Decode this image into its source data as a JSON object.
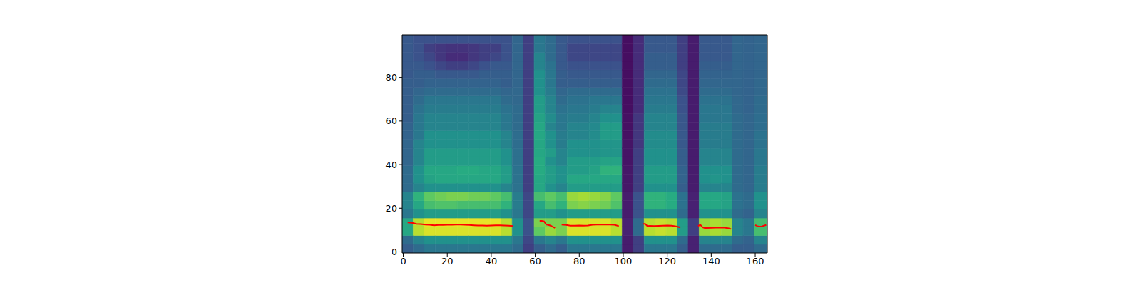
{
  "chart_data": {
    "type": "spectrogram",
    "xlim": [
      -0.5,
      165.5
    ],
    "ylim": [
      -0.5,
      99.5
    ],
    "xticks": [
      0,
      20,
      40,
      60,
      80,
      100,
      120,
      140,
      160
    ],
    "yticks": [
      0,
      20,
      40,
      60,
      80
    ],
    "zlim": [
      0,
      1
    ],
    "cell_x_edges": [
      -0.5,
      4.5,
      9.5,
      14.5,
      19.5,
      24.5,
      29.5,
      34.5,
      39.5,
      44.5,
      49.5,
      54.5,
      59.5,
      64.5,
      69.5,
      74.5,
      79.5,
      84.5,
      89.5,
      94.5,
      99.5,
      104.5,
      109.5,
      114.5,
      119.5,
      124.5,
      129.5,
      134.5,
      139.5,
      144.5,
      149.5,
      154.5,
      159.5,
      165.5
    ],
    "cell_y_edges": [
      -0.5,
      3.5,
      7.5,
      11.5,
      15.5,
      19.5,
      23.5,
      27.5,
      31.5,
      35.5,
      39.5,
      43.5,
      47.5,
      51.5,
      55.5,
      59.5,
      63.5,
      67.5,
      71.5,
      75.5,
      79.5,
      83.5,
      87.5,
      91.5,
      95.5,
      99.5
    ],
    "cells": [
      [
        0.3,
        0.35,
        0.6,
        0.6,
        0.4,
        0.45,
        0.45,
        0.35,
        0.35,
        0.35,
        0.33,
        0.33,
        0.33,
        0.32,
        0.32,
        0.3,
        0.3,
        0.3,
        0.3,
        0.3,
        0.28,
        0.28,
        0.28,
        0.28,
        0.28
      ],
      [
        0.35,
        0.45,
        0.9,
        0.9,
        0.5,
        0.6,
        0.65,
        0.45,
        0.5,
        0.5,
        0.45,
        0.45,
        0.45,
        0.4,
        0.4,
        0.4,
        0.38,
        0.35,
        0.33,
        0.3,
        0.3,
        0.28,
        0.25,
        0.25,
        0.25
      ],
      [
        0.4,
        0.5,
        0.95,
        0.97,
        0.55,
        0.7,
        0.75,
        0.5,
        0.58,
        0.6,
        0.55,
        0.55,
        0.5,
        0.5,
        0.45,
        0.45,
        0.42,
        0.4,
        0.35,
        0.32,
        0.3,
        0.25,
        0.22,
        0.2,
        0.25
      ],
      [
        0.4,
        0.5,
        0.95,
        0.97,
        0.55,
        0.72,
        0.78,
        0.5,
        0.6,
        0.6,
        0.55,
        0.55,
        0.5,
        0.5,
        0.45,
        0.45,
        0.42,
        0.4,
        0.35,
        0.32,
        0.28,
        0.22,
        0.18,
        0.18,
        0.25
      ],
      [
        0.4,
        0.5,
        0.95,
        0.97,
        0.55,
        0.72,
        0.8,
        0.5,
        0.6,
        0.6,
        0.55,
        0.55,
        0.5,
        0.5,
        0.45,
        0.45,
        0.42,
        0.4,
        0.35,
        0.32,
        0.28,
        0.2,
        0.15,
        0.17,
        0.25
      ],
      [
        0.4,
        0.5,
        0.95,
        0.97,
        0.55,
        0.7,
        0.8,
        0.5,
        0.6,
        0.62,
        0.55,
        0.55,
        0.5,
        0.5,
        0.45,
        0.45,
        0.42,
        0.4,
        0.35,
        0.32,
        0.28,
        0.2,
        0.15,
        0.17,
        0.25
      ],
      [
        0.4,
        0.5,
        0.95,
        0.97,
        0.55,
        0.7,
        0.78,
        0.5,
        0.6,
        0.62,
        0.55,
        0.55,
        0.5,
        0.5,
        0.45,
        0.45,
        0.42,
        0.4,
        0.35,
        0.32,
        0.28,
        0.22,
        0.18,
        0.18,
        0.25
      ],
      [
        0.4,
        0.5,
        0.95,
        0.97,
        0.55,
        0.7,
        0.78,
        0.5,
        0.6,
        0.6,
        0.55,
        0.55,
        0.5,
        0.5,
        0.45,
        0.45,
        0.42,
        0.4,
        0.35,
        0.32,
        0.3,
        0.25,
        0.2,
        0.2,
        0.25
      ],
      [
        0.4,
        0.5,
        0.95,
        0.97,
        0.55,
        0.7,
        0.75,
        0.5,
        0.6,
        0.6,
        0.55,
        0.55,
        0.5,
        0.5,
        0.45,
        0.45,
        0.42,
        0.4,
        0.35,
        0.32,
        0.3,
        0.28,
        0.22,
        0.2,
        0.25
      ],
      [
        0.4,
        0.5,
        0.9,
        0.9,
        0.5,
        0.65,
        0.7,
        0.45,
        0.55,
        0.55,
        0.5,
        0.5,
        0.45,
        0.45,
        0.4,
        0.4,
        0.38,
        0.35,
        0.33,
        0.3,
        0.3,
        0.28,
        0.25,
        0.25,
        0.25
      ],
      [
        0.35,
        0.4,
        0.5,
        0.5,
        0.4,
        0.42,
        0.42,
        0.38,
        0.38,
        0.38,
        0.37,
        0.37,
        0.36,
        0.36,
        0.35,
        0.35,
        0.35,
        0.34,
        0.34,
        0.33,
        0.33,
        0.33,
        0.33,
        0.33,
        0.33
      ],
      [
        0.2,
        0.22,
        0.25,
        0.25,
        0.22,
        0.22,
        0.22,
        0.2,
        0.2,
        0.2,
        0.2,
        0.2,
        0.2,
        0.2,
        0.2,
        0.2,
        0.2,
        0.2,
        0.2,
        0.2,
        0.2,
        0.2,
        0.2,
        0.2,
        0.2
      ],
      [
        0.3,
        0.4,
        0.75,
        0.8,
        0.55,
        0.6,
        0.7,
        0.6,
        0.6,
        0.62,
        0.62,
        0.6,
        0.6,
        0.6,
        0.6,
        0.58,
        0.55,
        0.55,
        0.5,
        0.5,
        0.5,
        0.45,
        0.45,
        0.4,
        0.4
      ],
      [
        0.35,
        0.45,
        0.85,
        0.8,
        0.55,
        0.7,
        0.75,
        0.5,
        0.55,
        0.55,
        0.5,
        0.55,
        0.5,
        0.5,
        0.45,
        0.48,
        0.45,
        0.45,
        0.42,
        0.4,
        0.4,
        0.38,
        0.35,
        0.35,
        0.35
      ],
      [
        0.3,
        0.4,
        0.8,
        0.8,
        0.5,
        0.65,
        0.7,
        0.45,
        0.5,
        0.5,
        0.45,
        0.45,
        0.42,
        0.42,
        0.4,
        0.4,
        0.38,
        0.35,
        0.33,
        0.3,
        0.3,
        0.28,
        0.28,
        0.28,
        0.28
      ],
      [
        0.4,
        0.5,
        0.95,
        0.95,
        0.55,
        0.8,
        0.85,
        0.55,
        0.6,
        0.55,
        0.55,
        0.5,
        0.5,
        0.45,
        0.45,
        0.42,
        0.4,
        0.38,
        0.35,
        0.3,
        0.28,
        0.25,
        0.22,
        0.22,
        0.25
      ],
      [
        0.4,
        0.5,
        0.95,
        0.95,
        0.55,
        0.82,
        0.87,
        0.55,
        0.6,
        0.55,
        0.55,
        0.5,
        0.5,
        0.45,
        0.45,
        0.42,
        0.4,
        0.38,
        0.35,
        0.3,
        0.28,
        0.25,
        0.22,
        0.22,
        0.25
      ],
      [
        0.4,
        0.5,
        0.95,
        0.95,
        0.55,
        0.8,
        0.85,
        0.55,
        0.6,
        0.58,
        0.55,
        0.5,
        0.5,
        0.48,
        0.47,
        0.45,
        0.42,
        0.4,
        0.35,
        0.3,
        0.28,
        0.25,
        0.22,
        0.22,
        0.25
      ],
      [
        0.4,
        0.5,
        0.95,
        0.95,
        0.55,
        0.78,
        0.82,
        0.55,
        0.6,
        0.65,
        0.58,
        0.52,
        0.52,
        0.55,
        0.55,
        0.5,
        0.45,
        0.4,
        0.35,
        0.3,
        0.28,
        0.25,
        0.22,
        0.22,
        0.25
      ],
      [
        0.4,
        0.5,
        0.9,
        0.9,
        0.55,
        0.72,
        0.75,
        0.55,
        0.6,
        0.65,
        0.58,
        0.52,
        0.52,
        0.55,
        0.55,
        0.5,
        0.45,
        0.4,
        0.35,
        0.3,
        0.28,
        0.25,
        0.22,
        0.22,
        0.25
      ],
      [
        0.1,
        0.1,
        0.12,
        0.12,
        0.1,
        0.1,
        0.1,
        0.08,
        0.08,
        0.08,
        0.07,
        0.07,
        0.07,
        0.06,
        0.06,
        0.06,
        0.05,
        0.05,
        0.05,
        0.05,
        0.05,
        0.05,
        0.05,
        0.05,
        0.05
      ],
      [
        0.2,
        0.2,
        0.35,
        0.35,
        0.25,
        0.25,
        0.25,
        0.2,
        0.2,
        0.2,
        0.2,
        0.2,
        0.18,
        0.18,
        0.18,
        0.18,
        0.15,
        0.15,
        0.15,
        0.15,
        0.15,
        0.15,
        0.15,
        0.15,
        0.15
      ],
      [
        0.4,
        0.5,
        0.9,
        0.9,
        0.5,
        0.65,
        0.65,
        0.5,
        0.55,
        0.55,
        0.5,
        0.5,
        0.48,
        0.48,
        0.45,
        0.45,
        0.42,
        0.4,
        0.38,
        0.35,
        0.33,
        0.3,
        0.3,
        0.28,
        0.28
      ],
      [
        0.4,
        0.5,
        0.92,
        0.92,
        0.5,
        0.65,
        0.65,
        0.5,
        0.55,
        0.55,
        0.5,
        0.5,
        0.48,
        0.48,
        0.45,
        0.45,
        0.42,
        0.4,
        0.38,
        0.35,
        0.33,
        0.3,
        0.3,
        0.28,
        0.28
      ],
      [
        0.4,
        0.5,
        0.9,
        0.9,
        0.5,
        0.62,
        0.62,
        0.5,
        0.55,
        0.55,
        0.5,
        0.5,
        0.48,
        0.48,
        0.45,
        0.45,
        0.42,
        0.4,
        0.38,
        0.35,
        0.33,
        0.3,
        0.3,
        0.28,
        0.28
      ],
      [
        0.3,
        0.35,
        0.55,
        0.55,
        0.35,
        0.38,
        0.38,
        0.3,
        0.32,
        0.32,
        0.3,
        0.3,
        0.28,
        0.28,
        0.27,
        0.27,
        0.25,
        0.25,
        0.23,
        0.22,
        0.22,
        0.2,
        0.2,
        0.2,
        0.2
      ],
      [
        0.12,
        0.12,
        0.2,
        0.2,
        0.12,
        0.12,
        0.12,
        0.1,
        0.1,
        0.1,
        0.1,
        0.1,
        0.1,
        0.1,
        0.1,
        0.1,
        0.1,
        0.1,
        0.1,
        0.1,
        0.1,
        0.1,
        0.1,
        0.1,
        0.1
      ],
      [
        0.35,
        0.45,
        0.85,
        0.85,
        0.5,
        0.6,
        0.6,
        0.45,
        0.5,
        0.5,
        0.45,
        0.45,
        0.42,
        0.42,
        0.42,
        0.4,
        0.4,
        0.38,
        0.35,
        0.33,
        0.32,
        0.3,
        0.28,
        0.28,
        0.28
      ],
      [
        0.35,
        0.45,
        0.88,
        0.88,
        0.5,
        0.6,
        0.6,
        0.45,
        0.52,
        0.5,
        0.45,
        0.45,
        0.42,
        0.42,
        0.42,
        0.4,
        0.4,
        0.38,
        0.35,
        0.33,
        0.32,
        0.3,
        0.28,
        0.28,
        0.28
      ],
      [
        0.35,
        0.45,
        0.85,
        0.85,
        0.5,
        0.58,
        0.58,
        0.45,
        0.5,
        0.5,
        0.45,
        0.45,
        0.42,
        0.42,
        0.42,
        0.4,
        0.4,
        0.38,
        0.35,
        0.33,
        0.32,
        0.3,
        0.28,
        0.28,
        0.28
      ],
      [
        0.3,
        0.35,
        0.45,
        0.45,
        0.35,
        0.38,
        0.38,
        0.35,
        0.35,
        0.35,
        0.35,
        0.35,
        0.35,
        0.35,
        0.35,
        0.35,
        0.34,
        0.34,
        0.33,
        0.33,
        0.33,
        0.33,
        0.33,
        0.33,
        0.33
      ],
      [
        0.3,
        0.32,
        0.4,
        0.4,
        0.32,
        0.35,
        0.35,
        0.33,
        0.33,
        0.33,
        0.33,
        0.33,
        0.33,
        0.33,
        0.33,
        0.33,
        0.32,
        0.32,
        0.32,
        0.32,
        0.32,
        0.32,
        0.32,
        0.32,
        0.32
      ],
      [
        0.35,
        0.45,
        0.7,
        0.7,
        0.45,
        0.5,
        0.5,
        0.42,
        0.42,
        0.42,
        0.4,
        0.4,
        0.38,
        0.38,
        0.36,
        0.36,
        0.35,
        0.35,
        0.34,
        0.34,
        0.33,
        0.33,
        0.33,
        0.33,
        0.33
      ]
    ],
    "color": "#ff0000",
    "x": [
      2,
      4,
      6,
      8,
      10,
      12,
      14,
      16,
      18,
      20,
      22,
      24,
      26,
      28,
      30,
      32,
      34,
      36,
      38,
      40,
      42,
      44,
      46,
      48,
      50,
      51,
      62,
      63,
      64,
      65,
      66,
      67,
      68,
      69,
      70,
      72,
      74,
      76,
      78,
      80,
      82,
      84,
      86,
      88,
      90,
      92,
      94,
      96,
      98,
      100,
      109,
      110,
      111,
      112,
      114,
      116,
      118,
      120,
      122,
      124,
      126,
      128,
      134,
      135,
      136,
      137,
      138,
      140,
      142,
      144,
      146,
      148,
      149,
      152,
      160,
      161,
      162,
      163,
      164,
      165
    ],
    "values": [
      13.5,
      13.3,
      12.8,
      12.7,
      12.5,
      12.4,
      12.2,
      12.3,
      12.3,
      12.4,
      12.4,
      12.5,
      12.5,
      12.4,
      12.3,
      12.2,
      12.1,
      12.1,
      12.0,
      12.1,
      12.2,
      12.2,
      12.1,
      12.0,
      11.8,
      null,
      14.2,
      14.2,
      14.0,
      12.5,
      12.3,
      12.0,
      11.5,
      11.0,
      null,
      12.5,
      12.3,
      12.0,
      12.0,
      12.1,
      12.0,
      12.1,
      12.4,
      12.5,
      12.5,
      12.6,
      12.5,
      12.4,
      11.8,
      null,
      12.8,
      12.8,
      11.8,
      11.9,
      11.8,
      11.9,
      12.0,
      12.1,
      12.0,
      11.7,
      11.2,
      null,
      11.8,
      12.5,
      11.3,
      10.9,
      10.9,
      11.0,
      11.1,
      11.1,
      11.1,
      10.8,
      10.5,
      null,
      12.3,
      11.8,
      11.6,
      11.7,
      12.0,
      12.3
    ]
  }
}
